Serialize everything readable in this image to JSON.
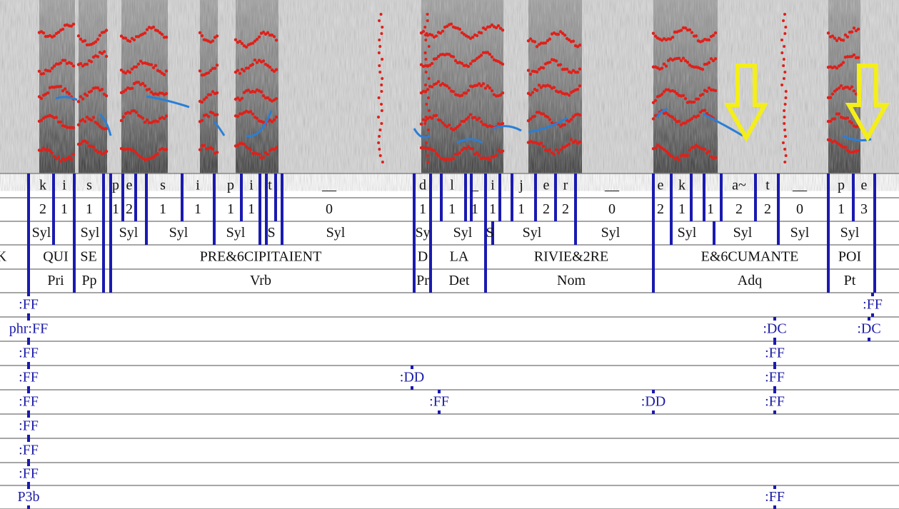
{
  "interval_tiers": [
    {
      "labels": [
        "k",
        "i",
        "s",
        "p",
        "e",
        "s",
        "i",
        "p",
        "i",
        "t",
        "__",
        "d",
        "l",
        "_",
        "i",
        "j",
        "e",
        "r",
        "__",
        "e",
        "k",
        "a~",
        "t",
        "__",
        "p",
        "e"
      ]
    },
    {
      "labels": [
        "2",
        "1",
        "1",
        "1",
        "2",
        "1",
        "1",
        "1",
        "1",
        "0",
        "1",
        "1",
        "1",
        "1",
        "1",
        "2",
        "2",
        "0",
        "2",
        "1",
        "1",
        "2",
        "2",
        "0",
        "1",
        "3"
      ]
    },
    {
      "labels": [
        "Syl",
        "Syl",
        "Syl",
        "Syl",
        "Syl",
        "S",
        "Syl",
        "Sy",
        "Syl",
        "S",
        "Syl",
        "Syl",
        "Syl",
        "Syl",
        "Syl",
        "Syl"
      ]
    },
    {
      "labels": [
        "K",
        "QUI",
        "SE",
        "PRE&6CIPITAIENT",
        "D",
        "LA",
        "RIVIE&2RE",
        "E&6CUMANTE",
        "POI"
      ]
    },
    {
      "labels": [
        "Pri",
        "Pp",
        "Vrb",
        "Pr",
        "Det",
        "Nom",
        "Adq",
        "Pt"
      ]
    }
  ],
  "point_tiers": [
    {
      "labels": [
        ":FF",
        ":FF"
      ]
    },
    {
      "labels": [
        "phr:FF",
        ":DC",
        ":DC"
      ]
    },
    {
      "labels": [
        ":FF",
        ":FF"
      ]
    },
    {
      "labels": [
        ":FF",
        ":DD",
        ":FF"
      ]
    },
    {
      "labels": [
        ":FF",
        ":FF",
        ":DD",
        ":FF"
      ]
    },
    {
      "labels": [
        ":FF"
      ]
    },
    {
      "labels": [
        ":FF"
      ]
    },
    {
      "labels": [
        ":FF"
      ]
    },
    {
      "labels": [
        "P3b",
        ":FF"
      ]
    }
  ]
}
